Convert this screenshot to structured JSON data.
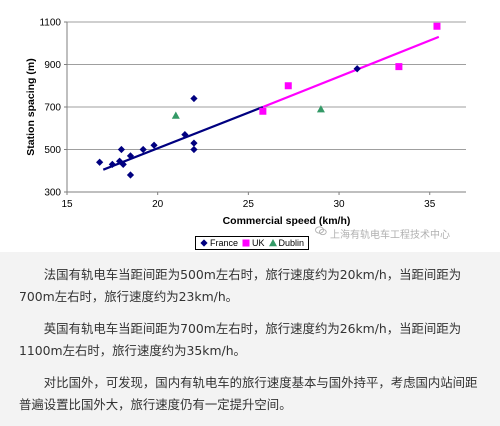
{
  "chart_data": {
    "type": "scatter",
    "xlabel": "Commercial speed (km/h)",
    "ylabel": "Station spacing (m)",
    "xlim": [
      15,
      37
    ],
    "ylim": [
      300,
      1100
    ],
    "xticks": [
      15,
      20,
      25,
      30,
      35
    ],
    "yticks": [
      300,
      500,
      700,
      900,
      1100
    ],
    "grid": true,
    "legend_position": "bottom",
    "series": [
      {
        "name": "France",
        "marker": "diamond",
        "color": "#000080",
        "points": [
          [
            16.8,
            440
          ],
          [
            17.5,
            430
          ],
          [
            17.9,
            445
          ],
          [
            18.0,
            500
          ],
          [
            18.1,
            430
          ],
          [
            18.5,
            380
          ],
          [
            18.5,
            470
          ],
          [
            19.2,
            500
          ],
          [
            19.8,
            520
          ],
          [
            21.5,
            570
          ],
          [
            22.0,
            740
          ],
          [
            22.0,
            530
          ],
          [
            22.0,
            500
          ],
          [
            31.0,
            880
          ]
        ]
      },
      {
        "name": "UK",
        "marker": "square",
        "color": "#ff00ff",
        "points": [
          [
            25.8,
            680
          ],
          [
            27.2,
            800
          ],
          [
            33.3,
            890
          ],
          [
            35.4,
            1080
          ]
        ]
      },
      {
        "name": "Dublin",
        "marker": "triangle",
        "color": "#339966",
        "points": [
          [
            21.0,
            660
          ],
          [
            29.0,
            690
          ]
        ]
      }
    ],
    "trendlines": [
      {
        "series": "France",
        "color": "#000080",
        "from": [
          17.0,
          405
        ],
        "to": [
          25.8,
          700
        ]
      },
      {
        "series": "UK",
        "color": "#ff00ff",
        "from": [
          25.8,
          700
        ],
        "to": [
          35.5,
          1030
        ]
      }
    ]
  },
  "watermark": "上海有轨电车工程技术中心",
  "paragraphs": [
    "法国有轨电车当距间距为500m左右时，旅行速度约为20km/h，当距间距为700m左右时，旅行速度约为23km/h。",
    "英国有轨电车当距间距为700m左右时，旅行速度约为26km/h，当距间距为1100m左右时，旅行速度约为35km/h。",
    "对比国外，可发现，国内有轨电车的旅行速度基本与国外持平，考虑国内站间距普遍设置比国外大，旅行速度仍有一定提升空间。"
  ]
}
